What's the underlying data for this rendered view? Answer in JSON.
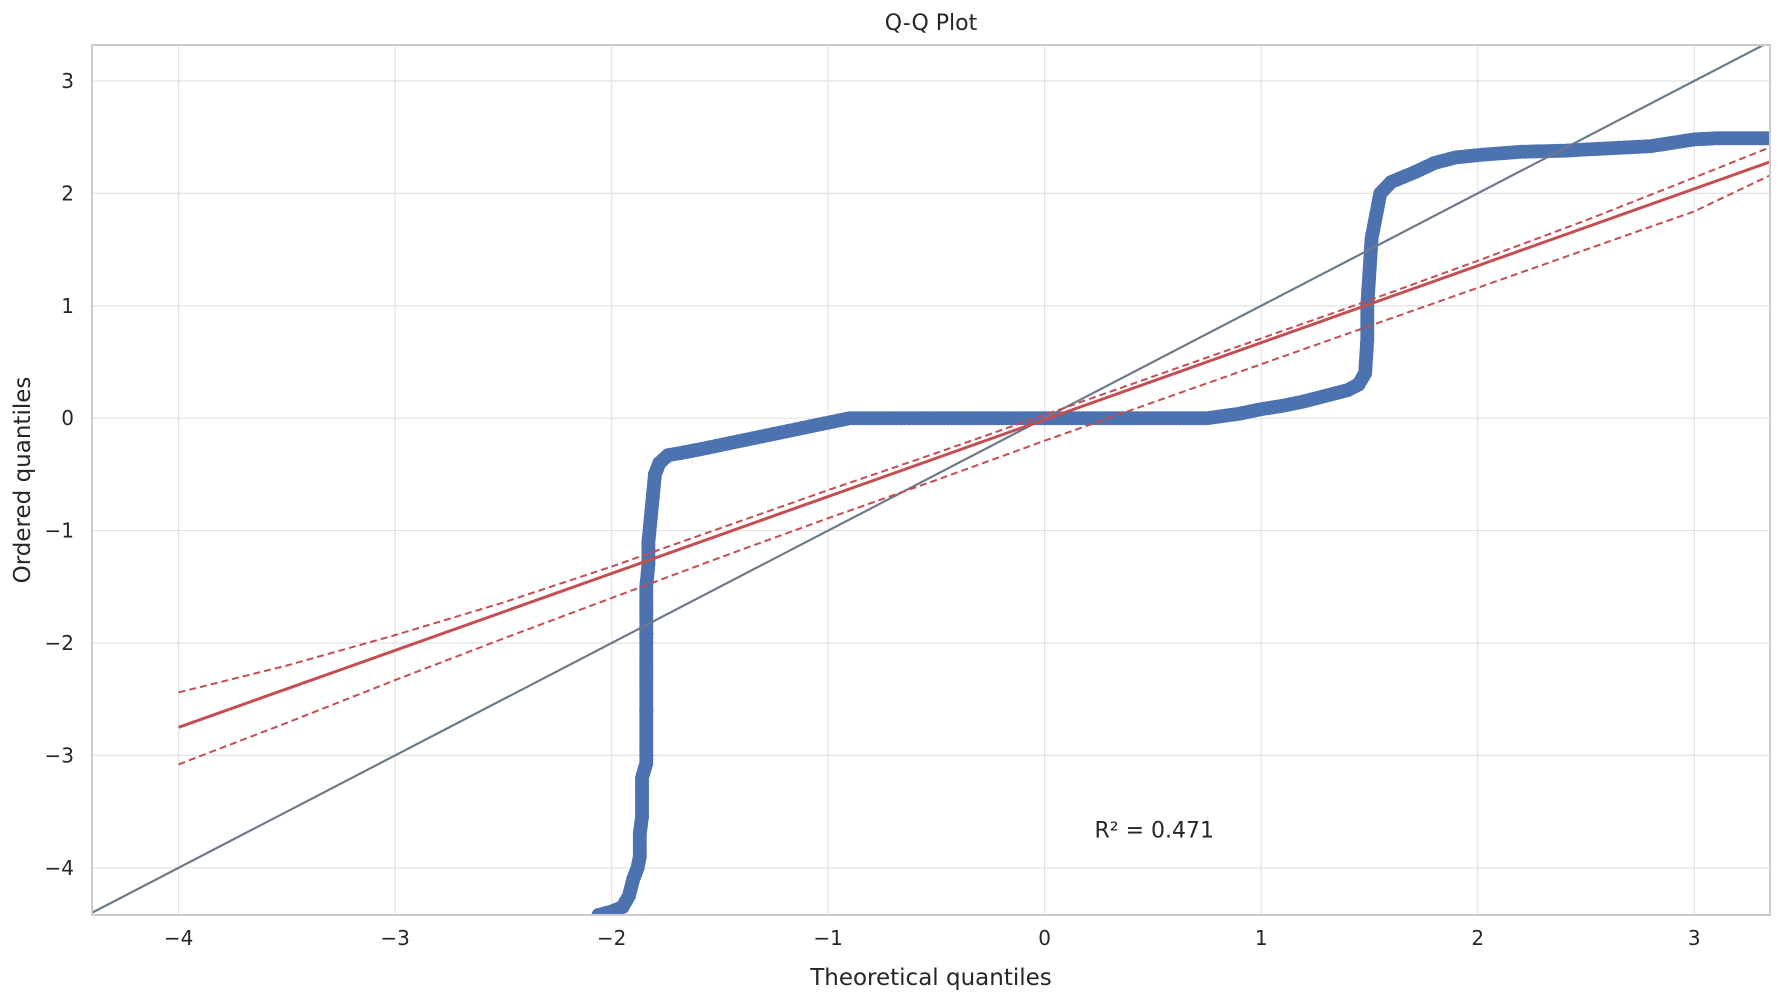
{
  "chart_data": {
    "type": "scatter",
    "title": "Q-Q Plot",
    "xlabel": "Theoretical quantiles",
    "ylabel": "Ordered quantiles",
    "xlim": [
      -4.4,
      3.35
    ],
    "ylim": [
      -4.42,
      3.32
    ],
    "xticks": [
      -4,
      -3,
      -2,
      -1,
      0,
      1,
      2,
      3
    ],
    "xtick_labels": [
      "−4",
      "−3",
      "−2",
      "−1",
      "0",
      "1",
      "2",
      "3"
    ],
    "yticks": [
      -4,
      -3,
      -2,
      -1,
      0,
      1,
      2,
      3
    ],
    "ytick_labels": [
      "−4",
      "−3",
      "−2",
      "−1",
      "0",
      "1",
      "2",
      "3"
    ],
    "grid": true,
    "annotation": {
      "text": "R² = 0.471",
      "x": 0.23,
      "y": -3.66
    },
    "series": [
      {
        "kind": "points",
        "color": "#4c72b0",
        "points": [
          [
            -2.06,
            -4.42
          ],
          [
            -2.0,
            -4.39
          ],
          [
            -1.95,
            -4.35
          ],
          [
            -1.92,
            -4.25
          ],
          [
            -1.9,
            -4.1
          ],
          [
            -1.88,
            -4.0
          ],
          [
            -1.87,
            -3.9
          ],
          [
            -1.87,
            -3.7
          ],
          [
            -1.86,
            -3.55
          ],
          [
            -1.86,
            -3.35
          ],
          [
            -1.86,
            -3.2
          ],
          [
            -1.84,
            -3.07
          ],
          [
            -1.84,
            -2.6
          ],
          [
            -1.84,
            -2.26
          ],
          [
            -1.84,
            -1.92
          ],
          [
            -1.84,
            -1.72
          ],
          [
            -1.84,
            -1.5
          ],
          [
            -1.83,
            -1.3
          ],
          [
            -1.83,
            -1.1
          ],
          [
            -1.82,
            -0.9
          ],
          [
            -1.81,
            -0.7
          ],
          [
            -1.8,
            -0.5
          ],
          [
            -1.78,
            -0.4
          ],
          [
            -1.74,
            -0.33
          ],
          [
            -1.68,
            -0.31
          ],
          [
            -1.6,
            -0.28
          ],
          [
            -1.5,
            -0.24
          ],
          [
            -1.4,
            -0.2
          ],
          [
            -1.3,
            -0.16
          ],
          [
            -1.2,
            -0.12
          ],
          [
            -1.1,
            -0.08
          ],
          [
            -1.0,
            -0.04
          ],
          [
            -0.9,
            0.0
          ],
          [
            -0.5,
            0.0
          ],
          [
            0.0,
            0.0
          ],
          [
            0.5,
            0.0
          ],
          [
            0.75,
            0.0
          ],
          [
            0.9,
            0.04
          ],
          [
            1.0,
            0.08
          ],
          [
            1.1,
            0.11
          ],
          [
            1.2,
            0.15
          ],
          [
            1.3,
            0.2
          ],
          [
            1.4,
            0.25
          ],
          [
            1.45,
            0.3
          ],
          [
            1.48,
            0.4
          ],
          [
            1.49,
            0.7
          ],
          [
            1.49,
            1.0
          ],
          [
            1.5,
            1.3
          ],
          [
            1.51,
            1.6
          ],
          [
            1.53,
            1.8
          ],
          [
            1.55,
            2.0
          ],
          [
            1.6,
            2.1
          ],
          [
            1.7,
            2.18
          ],
          [
            1.8,
            2.27
          ],
          [
            1.9,
            2.32
          ],
          [
            2.0,
            2.34
          ],
          [
            2.2,
            2.37
          ],
          [
            2.4,
            2.38
          ],
          [
            2.6,
            2.4
          ],
          [
            2.8,
            2.42
          ],
          [
            2.9,
            2.45
          ],
          [
            3.0,
            2.48
          ],
          [
            3.1,
            2.49
          ],
          [
            3.2,
            2.49
          ],
          [
            3.35,
            2.49
          ]
        ]
      },
      {
        "kind": "identity-line",
        "color": "#6c7b8b",
        "x": [
          -4.4,
          3.35
        ],
        "y": [
          -4.4,
          3.35
        ]
      },
      {
        "kind": "fit-line",
        "color": "#c44e52",
        "x": [
          -4.0,
          3.35
        ],
        "y": [
          -2.75,
          2.28
        ]
      },
      {
        "kind": "confidence-band-upper",
        "color": "#c44e52",
        "dashed": true,
        "x": [
          -4.0,
          -3.5,
          -3.0,
          -2.5,
          -2.0,
          -1.5,
          -1.0,
          -0.5,
          0.0,
          0.5,
          1.0,
          1.5,
          2.0,
          2.5,
          3.0,
          3.35
        ],
        "y": [
          -2.44,
          -2.2,
          -1.93,
          -1.64,
          -1.32,
          -0.98,
          -0.64,
          -0.31,
          0.03,
          0.37,
          0.71,
          1.05,
          1.4,
          1.76,
          2.14,
          2.41
        ]
      },
      {
        "kind": "confidence-band-lower",
        "color": "#c44e52",
        "dashed": true,
        "x": [
          -4.0,
          -3.5,
          -3.0,
          -2.5,
          -2.0,
          -1.5,
          -1.0,
          -0.5,
          0.0,
          0.5,
          1.0,
          1.5,
          2.0,
          2.5,
          3.0,
          3.35
        ],
        "y": [
          -3.08,
          -2.71,
          -2.33,
          -1.96,
          -1.6,
          -1.24,
          -0.89,
          -0.55,
          -0.2,
          0.14,
          0.48,
          0.82,
          1.16,
          1.5,
          1.84,
          2.16
        ]
      }
    ]
  }
}
